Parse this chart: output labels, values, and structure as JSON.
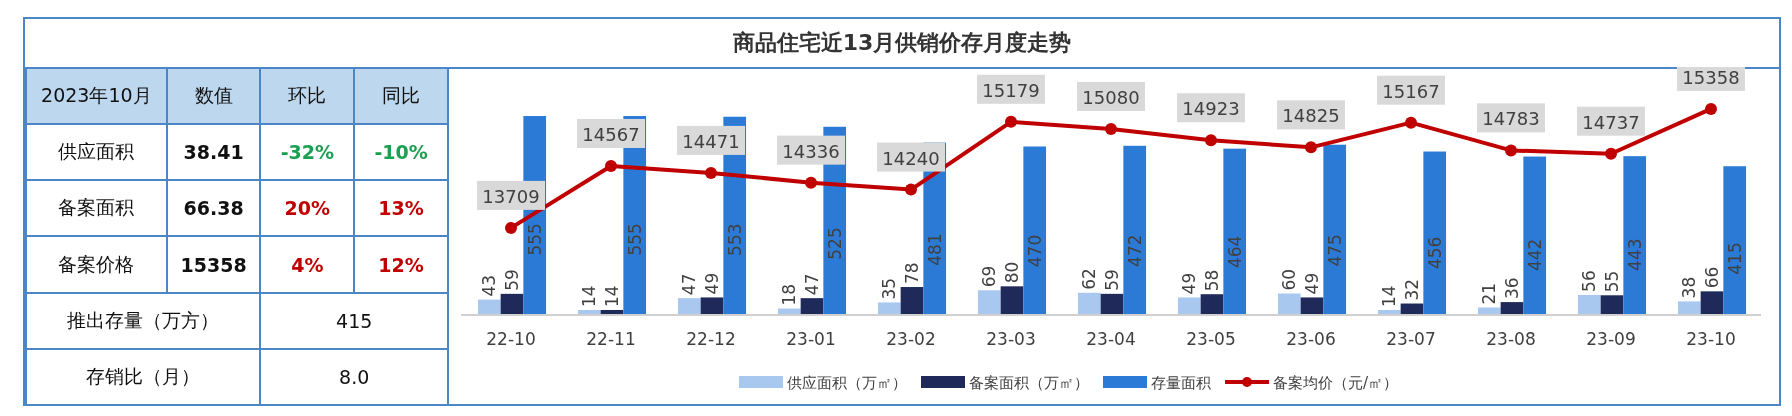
{
  "chart_data": [
    {
      "type": "other",
      "annotations": [
        "2023年10月",
        "数值",
        "环比",
        "同比",
        "供应面积",
        "38.41",
        "-32%",
        "-10%",
        "备案面积",
        "66.38",
        "20%",
        "13%",
        "备案价格",
        "15358",
        "4%",
        "12%",
        "推出存量（万方）",
        "415",
        "存销比（月）",
        "8.0"
      ]
    },
    {
      "type": "bar",
      "title": "商品住宅近13月供销价存月度走势",
      "data_labels": true,
      "legend": "bottom",
      "grid": false,
      "categories": [
        "22-10",
        "22-11",
        "22-12",
        "23-01",
        "23-02",
        "23-03",
        "23-04",
        "23-05",
        "23-06",
        "23-07",
        "23-08",
        "23-09",
        "23-10"
      ],
      "series": [
        {
          "name": "供应面积（万㎡）",
          "color": "#a9c8f0",
          "values": [
            43,
            14,
            47,
            18,
            35,
            69,
            62,
            49,
            60,
            14,
            21,
            56,
            38
          ]
        },
        {
          "name": "备案面积（万㎡）",
          "color": "#1f2a5a",
          "values": [
            59,
            14,
            49,
            47,
            78,
            80,
            59,
            58,
            49,
            32,
            36,
            55,
            66
          ]
        },
        {
          "name": "存量面积",
          "color": "#2b7bd6",
          "values": [
            555,
            555,
            553,
            525,
            481,
            470,
            472,
            464,
            475,
            456,
            442,
            443,
            415
          ]
        },
        {
          "name": "备案均价（元/㎡）",
          "type": "line",
          "axis": "y2",
          "color": "#c00000",
          "marker": "circle",
          "values": [
            13709,
            14567,
            14471,
            14336,
            14240,
            15179,
            15080,
            14923,
            14825,
            15167,
            14783,
            14737,
            15358
          ]
        }
      ]
    }
  ]
}
